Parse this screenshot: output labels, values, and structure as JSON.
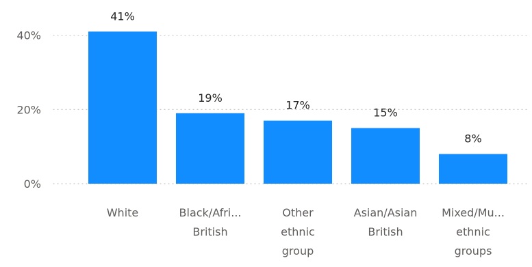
{
  "chart_data": {
    "type": "bar",
    "categories": [
      [
        "White"
      ],
      [
        "Black/Afri...",
        "British"
      ],
      [
        "Other",
        "ethnic",
        "group"
      ],
      [
        "Asian/Asian",
        "British"
      ],
      [
        "Mixed/Mu...",
        "ethnic",
        "groups"
      ]
    ],
    "values": [
      41,
      19,
      17,
      15,
      8
    ],
    "value_labels": [
      "41%",
      "19%",
      "17%",
      "15%",
      "8%"
    ],
    "y_ticks": [
      {
        "value": 0,
        "label": "0%"
      },
      {
        "value": 20,
        "label": "20%"
      },
      {
        "value": 40,
        "label": "40%"
      }
    ],
    "ylim": [
      0,
      41.6
    ],
    "grid": true,
    "bar_color": "#118DFF",
    "gridline_color": "#C8C8C8",
    "text_color": "#252423",
    "axis_text_color": "#605E5C"
  }
}
